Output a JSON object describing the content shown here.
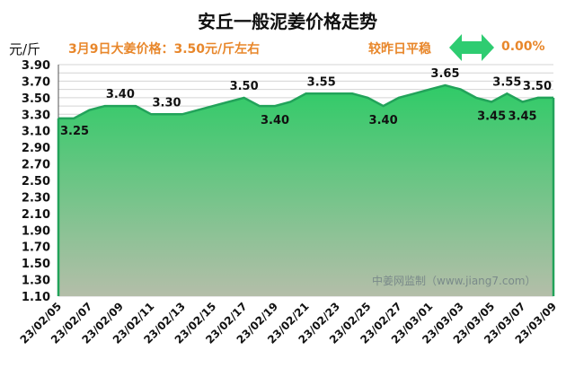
{
  "header": {
    "title": "安丘一般泥姜价格走势",
    "unit": "元/斤",
    "price_text": "3月9日大姜价格：3.50元/斤左右",
    "compare_text": "较昨日平稳",
    "change_percent": "0.00%"
  },
  "watermark": "中姜网监制（www.jiang7.com）",
  "colors": {
    "accent_orange": "#e8872b",
    "line_green": "#22a35a",
    "fill_top": "#2fcb67",
    "fill_bottom": "#b4bea9",
    "arrow_green": "#2ecc71"
  },
  "icons": {
    "change_arrow": "double-arrow-icon"
  },
  "chart_data": {
    "type": "area",
    "title": "安丘一般泥姜价格走势",
    "xlabel": "",
    "ylabel": "元/斤",
    "ylim": [
      1.1,
      3.9
    ],
    "yticks": [
      "1.10",
      "1.30",
      "1.50",
      "1.70",
      "1.90",
      "2.10",
      "2.30",
      "2.50",
      "2.70",
      "2.90",
      "3.10",
      "3.30",
      "3.50",
      "3.70",
      "3.90"
    ],
    "ystep": 0.2,
    "yminor_step": 0.1,
    "grid": true,
    "x_tick_labels": [
      "23/02/05",
      "23/02/07",
      "23/02/09",
      "23/02/11",
      "23/02/13",
      "23/02/15",
      "23/02/17",
      "23/02/19",
      "23/02/21",
      "23/02/23",
      "23/02/25",
      "23/02/27",
      "23/03/01",
      "23/03/03",
      "23/03/05",
      "23/03/07",
      "23/03/09"
    ],
    "x": [
      "23/02/05",
      "23/02/06",
      "23/02/07",
      "23/02/08",
      "23/02/09",
      "23/02/10",
      "23/02/11",
      "23/02/12",
      "23/02/13",
      "23/02/14",
      "23/02/15",
      "23/02/16",
      "23/02/17",
      "23/02/18",
      "23/02/19",
      "23/02/20",
      "23/02/21",
      "23/02/22",
      "23/02/23",
      "23/02/24",
      "23/02/25",
      "23/02/26",
      "23/02/27",
      "23/02/28",
      "23/03/01",
      "23/03/02",
      "23/03/03",
      "23/03/04",
      "23/03/05",
      "23/03/06",
      "23/03/07",
      "23/03/08",
      "23/03/09"
    ],
    "values": [
      3.25,
      3.25,
      3.35,
      3.4,
      3.4,
      3.4,
      3.3,
      3.3,
      3.3,
      3.35,
      3.4,
      3.45,
      3.5,
      3.4,
      3.4,
      3.45,
      3.55,
      3.55,
      3.55,
      3.55,
      3.5,
      3.4,
      3.5,
      3.55,
      3.6,
      3.65,
      3.6,
      3.5,
      3.45,
      3.55,
      3.45,
      3.5,
      3.5
    ],
    "data_labels": [
      {
        "date": "23/02/05",
        "text": "3.25"
      },
      {
        "date": "23/02/09",
        "text": "3.40"
      },
      {
        "date": "23/02/12",
        "text": "3.30"
      },
      {
        "date": "23/02/17",
        "text": "3.50"
      },
      {
        "date": "23/02/19",
        "text": "3.40"
      },
      {
        "date": "23/02/22",
        "text": "3.55"
      },
      {
        "date": "23/02/26",
        "text": "3.40"
      },
      {
        "date": "23/03/02",
        "text": "3.65"
      },
      {
        "date": "23/03/05",
        "text": "3.45"
      },
      {
        "date": "23/03/06",
        "text": "3.55"
      },
      {
        "date": "23/03/07",
        "text": "3.45"
      },
      {
        "date": "23/03/09",
        "text": "3.50"
      }
    ]
  }
}
